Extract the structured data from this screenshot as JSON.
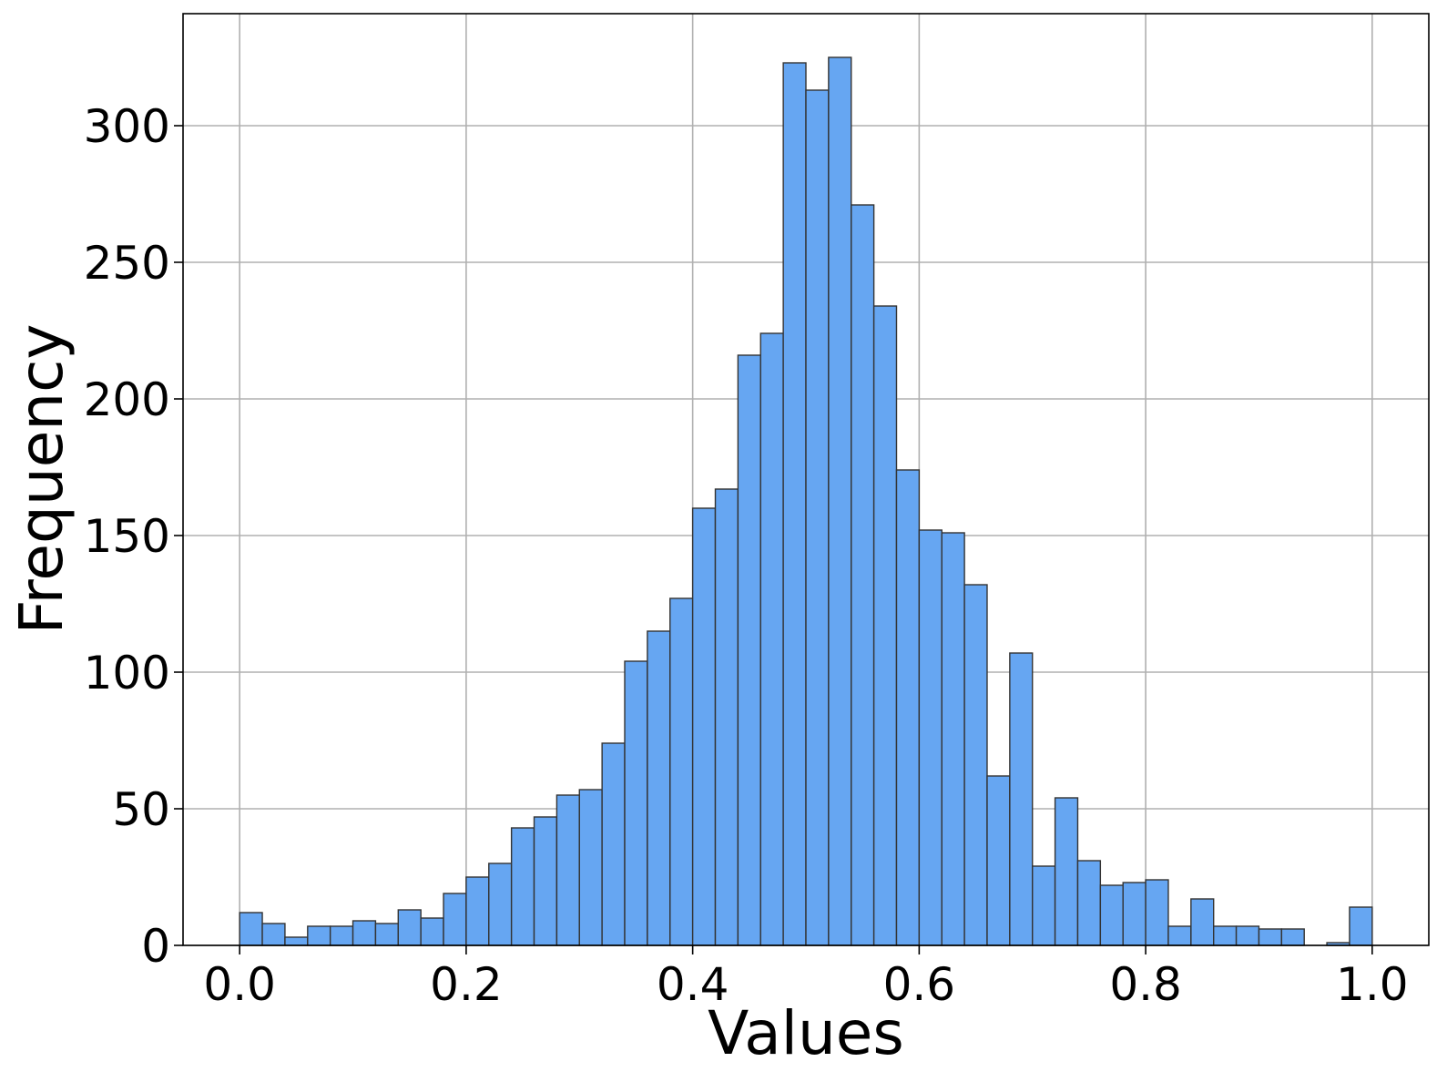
{
  "chart_data": {
    "type": "bar",
    "title": "",
    "xlabel": "Values",
    "ylabel": "Frequency",
    "xlim": [
      -0.05,
      1.05
    ],
    "ylim": [
      0,
      341
    ],
    "xticks": [
      0.0,
      0.2,
      0.4,
      0.6,
      0.8,
      1.0
    ],
    "xtick_labels": [
      "0.0",
      "0.2",
      "0.4",
      "0.6",
      "0.8",
      "1.0"
    ],
    "yticks": [
      0,
      50,
      100,
      150,
      200,
      250,
      300
    ],
    "ytick_labels": [
      "0",
      "50",
      "100",
      "150",
      "200",
      "250",
      "300"
    ],
    "grid": true,
    "bin_start": 0.0,
    "bin_width": 0.02,
    "values": [
      12,
      8,
      3,
      7,
      7,
      9,
      8,
      13,
      10,
      19,
      25,
      30,
      43,
      47,
      55,
      57,
      74,
      104,
      115,
      127,
      160,
      167,
      216,
      224,
      323,
      313,
      325,
      271,
      234,
      174,
      152,
      151,
      132,
      62,
      107,
      29,
      54,
      31,
      22,
      23,
      24,
      7,
      17,
      7,
      7,
      6,
      6,
      0,
      1,
      14
    ],
    "bar_color": "#66a6f2",
    "edge_color": "#333333"
  }
}
